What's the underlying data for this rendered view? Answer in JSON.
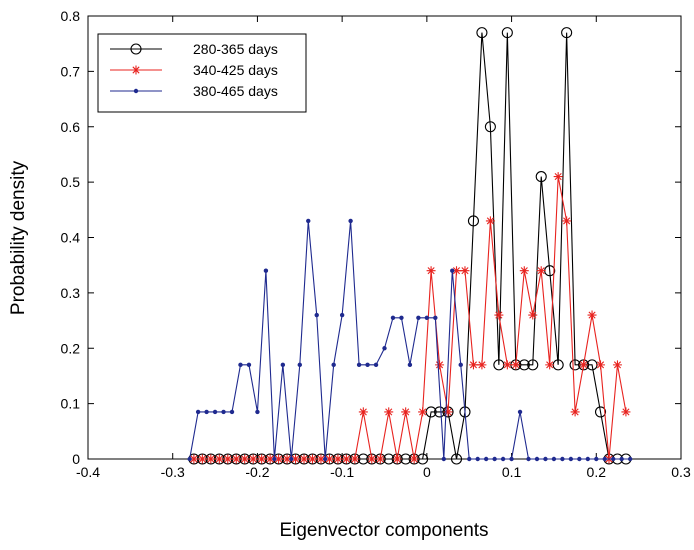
{
  "chart_data": {
    "type": "line",
    "title": "",
    "xlabel": "Eigenvector components",
    "ylabel": "Probability density",
    "xlim": [
      -0.4,
      0.3
    ],
    "ylim": [
      0,
      0.8
    ],
    "xticks": [
      -0.4,
      -0.3,
      -0.2,
      -0.1,
      0,
      0.1,
      0.2,
      0.3
    ],
    "xtick_labels": [
      "-0.4",
      "-0.3",
      "-0.2",
      "-0.1",
      "0",
      "0.1",
      "0.2",
      "0.3"
    ],
    "yticks": [
      0,
      0.1,
      0.2,
      0.3,
      0.4,
      0.5,
      0.6,
      0.7,
      0.8
    ],
    "ytick_labels": [
      "0",
      "0.1",
      "0.2",
      "0.3",
      "0.4",
      "0.5",
      "0.6",
      "0.7",
      "0.8"
    ],
    "grid": false,
    "legend_position": "top-left",
    "series": [
      {
        "name": "280-365 days",
        "color": "#000000",
        "marker": "circle-open",
        "x": [
          -0.275,
          -0.265,
          -0.255,
          -0.245,
          -0.235,
          -0.225,
          -0.215,
          -0.205,
          -0.195,
          -0.185,
          -0.175,
          -0.165,
          -0.155,
          -0.145,
          -0.135,
          -0.125,
          -0.115,
          -0.105,
          -0.095,
          -0.085,
          -0.075,
          -0.065,
          -0.055,
          -0.045,
          -0.035,
          -0.025,
          -0.015,
          -0.005,
          0.005,
          0.015,
          0.025,
          0.035,
          0.045,
          0.055,
          0.065,
          0.075,
          0.085,
          0.095,
          0.105,
          0.115,
          0.125,
          0.135,
          0.145,
          0.155,
          0.165,
          0.175,
          0.185,
          0.195,
          0.205,
          0.215,
          0.225,
          0.235
        ],
        "y": [
          0,
          0,
          0,
          0,
          0,
          0,
          0,
          0,
          0,
          0,
          0,
          0,
          0,
          0,
          0,
          0,
          0,
          0,
          0,
          0,
          0,
          0,
          0,
          0,
          0,
          0,
          0,
          0,
          0.085,
          0.085,
          0.085,
          0,
          0.085,
          0.43,
          0.77,
          0.6,
          0.17,
          0.77,
          0.17,
          0.17,
          0.17,
          0.51,
          0.34,
          0.17,
          0.77,
          0.17,
          0.17,
          0.17,
          0.085,
          0,
          0,
          0
        ]
      },
      {
        "name": "340-425 days",
        "color": "#e8231f",
        "marker": "asterisk",
        "x": [
          -0.275,
          -0.265,
          -0.255,
          -0.245,
          -0.235,
          -0.225,
          -0.215,
          -0.205,
          -0.195,
          -0.185,
          -0.175,
          -0.165,
          -0.155,
          -0.145,
          -0.135,
          -0.125,
          -0.115,
          -0.105,
          -0.095,
          -0.085,
          -0.075,
          -0.065,
          -0.055,
          -0.045,
          -0.035,
          -0.025,
          -0.015,
          -0.005,
          0.005,
          0.015,
          0.025,
          0.035,
          0.045,
          0.055,
          0.065,
          0.075,
          0.085,
          0.095,
          0.105,
          0.115,
          0.125,
          0.135,
          0.145,
          0.155,
          0.165,
          0.175,
          0.185,
          0.195,
          0.205,
          0.215,
          0.225,
          0.235
        ],
        "y": [
          0,
          0,
          0,
          0,
          0,
          0,
          0,
          0,
          0,
          0,
          0,
          0,
          0,
          0,
          0,
          0,
          0,
          0,
          0,
          0,
          0.085,
          0,
          0,
          0.085,
          0,
          0.085,
          0,
          0.085,
          0.34,
          0.17,
          0.085,
          0.34,
          0.34,
          0.17,
          0.17,
          0.43,
          0.26,
          0.17,
          0.17,
          0.34,
          0.26,
          0.34,
          0.17,
          0.51,
          0.43,
          0.085,
          0.17,
          0.26,
          0.17,
          0,
          0.17,
          0.085
        ]
      },
      {
        "name": "380-465 days",
        "color": "#1f2a8f",
        "marker": "dot",
        "x": [
          -0.28,
          -0.27,
          -0.26,
          -0.25,
          -0.24,
          -0.23,
          -0.22,
          -0.21,
          -0.2,
          -0.19,
          -0.18,
          -0.17,
          -0.16,
          -0.15,
          -0.14,
          -0.13,
          -0.12,
          -0.11,
          -0.1,
          -0.09,
          -0.08,
          -0.07,
          -0.06,
          -0.05,
          -0.04,
          -0.03,
          -0.02,
          -0.01,
          0,
          0.01,
          0.02,
          0.03,
          0.04,
          0.05,
          0.06,
          0.07,
          0.08,
          0.09,
          0.1,
          0.11,
          0.12,
          0.13,
          0.14,
          0.15,
          0.16,
          0.17,
          0.18,
          0.19,
          0.2,
          0.21,
          0.22,
          0.23,
          0.24
        ],
        "y": [
          0,
          0.085,
          0.085,
          0.085,
          0.085,
          0.085,
          0.17,
          0.17,
          0.085,
          0.34,
          0,
          0.17,
          0,
          0.17,
          0.43,
          0.26,
          0,
          0.17,
          0.26,
          0.43,
          0.17,
          0.17,
          0.17,
          0.2,
          0.255,
          0.255,
          0.17,
          0.255,
          0.255,
          0.255,
          0,
          0.34,
          0.17,
          0,
          0,
          0,
          0,
          0,
          0,
          0.085,
          0,
          0,
          0,
          0,
          0,
          0,
          0,
          0,
          0,
          0,
          0,
          0,
          0
        ]
      }
    ]
  }
}
